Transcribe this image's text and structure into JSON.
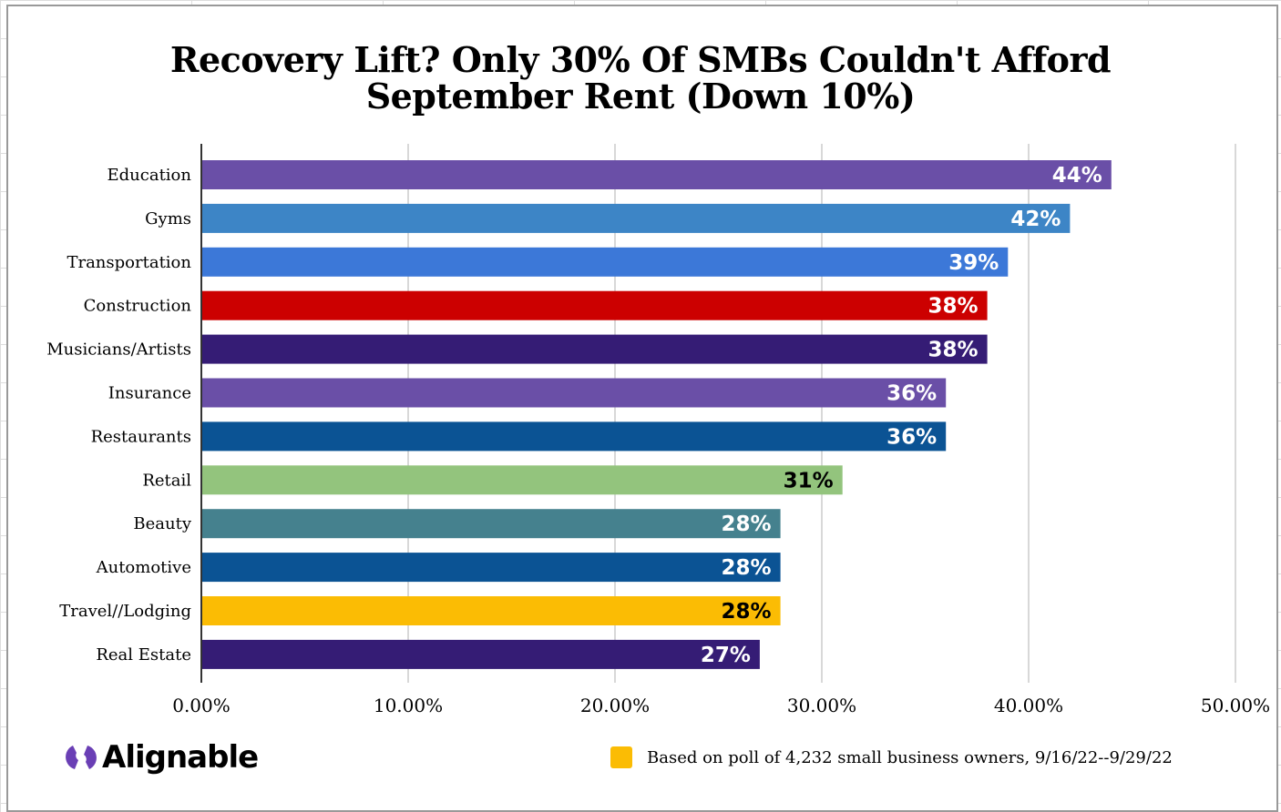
{
  "chart_data": {
    "type": "bar",
    "orientation": "horizontal",
    "title": "Recovery Lift? Only 30% Of SMBs Couldn't Afford September Rent (Down 10%)",
    "title_lines": [
      "Recovery Lift? Only 30% Of SMBs Couldn't Afford",
      "September Rent (Down 10%)"
    ],
    "categories": [
      "Education",
      "Gyms",
      "Transportation",
      "Construction",
      "Musicians/Artists",
      "Insurance",
      "Restaurants",
      "Retail",
      "Beauty",
      "Automotive",
      "Travel//Lodging",
      "Real Estate"
    ],
    "values": [
      44,
      42,
      39,
      38,
      38,
      36,
      36,
      31,
      28,
      28,
      28,
      27
    ],
    "data_labels": [
      "44%",
      "42%",
      "39%",
      "38%",
      "38%",
      "36%",
      "36%",
      "31%",
      "28%",
      "28%",
      "28%",
      "27%"
    ],
    "colors": [
      "#6a4fa7",
      "#3d85c6",
      "#3c78d8",
      "#cc0000",
      "#351c75",
      "#6a4fa7",
      "#0b5394",
      "#93c47d",
      "#45818e",
      "#0b5394",
      "#fbbc04",
      "#351c75"
    ],
    "label_colors": [
      "#ffffff",
      "#ffffff",
      "#ffffff",
      "#ffffff",
      "#ffffff",
      "#ffffff",
      "#ffffff",
      "#000000",
      "#ffffff",
      "#ffffff",
      "#000000",
      "#ffffff"
    ],
    "xlim": [
      0,
      50
    ],
    "xticks": [
      "0.00%",
      "10.00%",
      "20.00%",
      "30.00%",
      "40.00%",
      "50.00%"
    ],
    "grid": true
  },
  "logo": {
    "text": "Alignable",
    "color": "#6a3fb5"
  },
  "note": {
    "text": "Based on poll of 4,232 small business owners, 9/16/22--9/29/22",
    "color": "#fbbc04"
  }
}
